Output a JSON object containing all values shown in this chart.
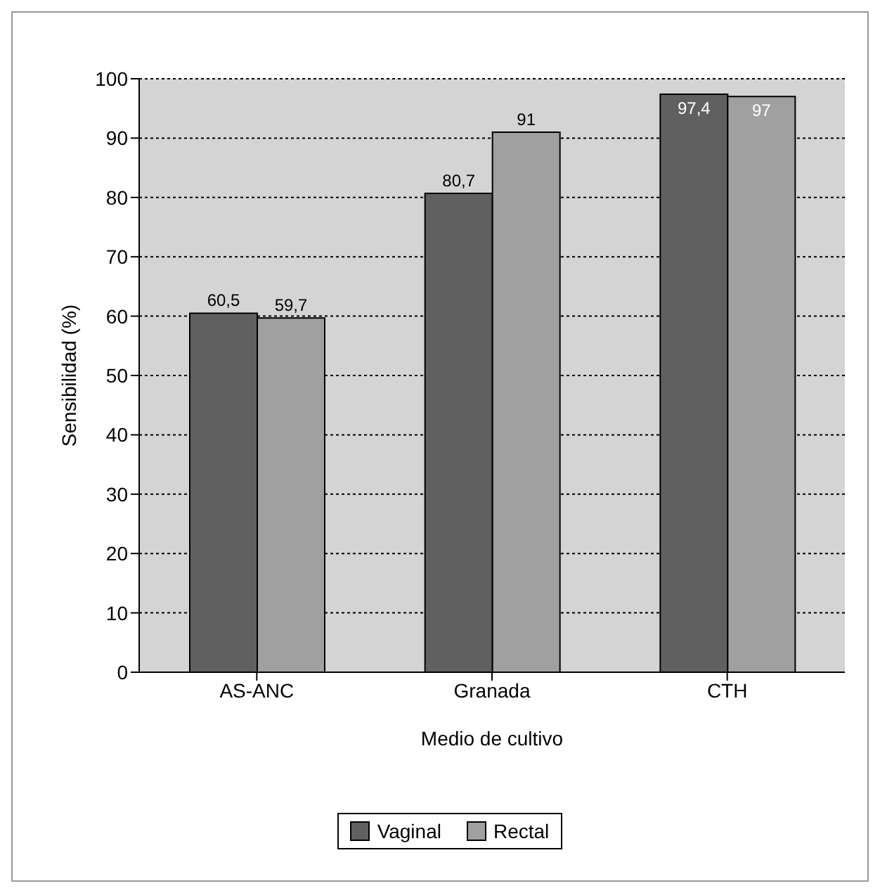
{
  "chart_data": {
    "type": "bar",
    "xlabel": "Medio de cultivo",
    "ylabel": "Sensibilidad (%)",
    "categories": [
      "AS-ANC",
      "Granada",
      "CTH"
    ],
    "series": [
      {
        "name": "Vaginal",
        "color": "#606060",
        "values": [
          60.5,
          80.7,
          97.4
        ],
        "value_labels": [
          "60,5",
          "80,7",
          "97,4"
        ]
      },
      {
        "name": "Rectal",
        "color": "#a0a0a0",
        "values": [
          59.7,
          91,
          97
        ],
        "value_labels": [
          "59,7",
          "91",
          "97"
        ]
      }
    ],
    "ylim": [
      0,
      100
    ],
    "yticks": [
      0,
      10,
      20,
      30,
      40,
      50,
      60,
      70,
      80,
      90,
      100
    ],
    "grid": "y",
    "legend": "bottom"
  }
}
